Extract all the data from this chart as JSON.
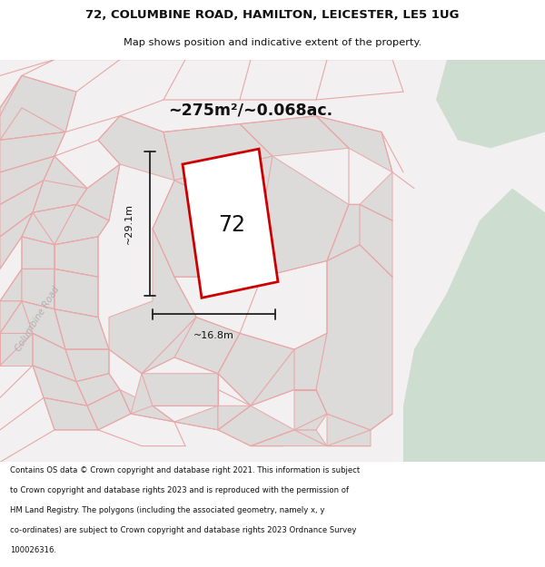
{
  "title_line1": "72, COLUMBINE ROAD, HAMILTON, LEICESTER, LE5 1UG",
  "title_line2": "Map shows position and indicative extent of the property.",
  "area_label": "~275m²/~0.068ac.",
  "property_number": "72",
  "dim_height": "~29.1m",
  "dim_width": "~16.8m",
  "road_label": "Columbine Road",
  "footer_lines": [
    "Contains OS data © Crown copyright and database right 2021. This information is subject",
    "to Crown copyright and database rights 2023 and is reproduced with the permission of",
    "HM Land Registry. The polygons (including the associated geometry, namely x, y",
    "co-ordinates) are subject to Crown copyright and database rights 2023 Ordnance Survey",
    "100026316."
  ],
  "map_bg": "#f2f0f0",
  "green_color": "#cdddd0",
  "property_fill": "#ffffff",
  "property_edge": "#cc0000",
  "neighbor_fill": "#dddada",
  "neighbor_edge": "#e8a8a8",
  "road_line_color": "#e8a8a8",
  "dim_line_color": "#222222",
  "title_color": "#111111",
  "footer_color": "#111111",
  "road_label_color": "#b0b0b0"
}
